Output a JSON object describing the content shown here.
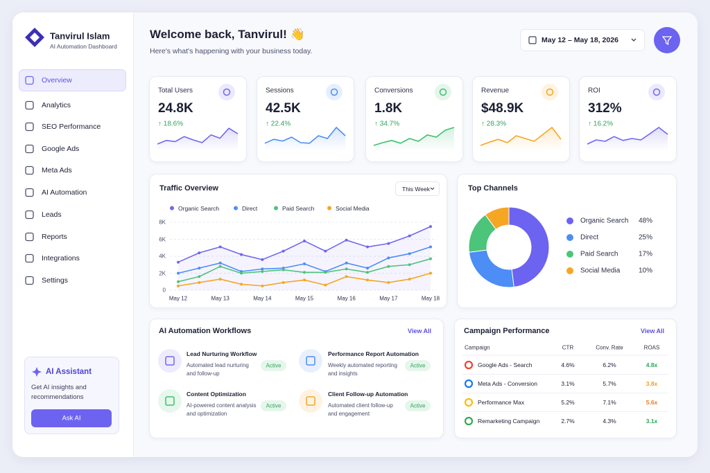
{
  "sidebar": {
    "brand": "Tanvirul Islam",
    "subtitle": "AI Automation Dashboard",
    "nav": [
      "Overview",
      "Analytics",
      "SEO Performance",
      "Google Ads",
      "Meta Ads",
      "AI Automation",
      "Leads",
      "Reports",
      "Integrations",
      "Settings"
    ],
    "assistant": {
      "title": "AI Assistant",
      "text": "Get AI insights and recommendations",
      "button": "Ask AI"
    }
  },
  "header": {
    "title": "Welcome back, Tanvirul! 👋",
    "subtitle": "Here's what's happening with your business today.",
    "date_range": "May 12 – May 18, 2026"
  },
  "kpis": [
    {
      "label": "Total Users",
      "value": "24.8K",
      "change": "↑ 18.6%",
      "color": "#7166ee",
      "trend": [
        25,
        38,
        34,
        52,
        40,
        30,
        58,
        46,
        82,
        62
      ]
    },
    {
      "label": "Sessions",
      "value": "42.5K",
      "change": "↑ 22.4%",
      "color": "#4c8df6",
      "trend": [
        28,
        42,
        36,
        50,
        30,
        28,
        55,
        45,
        85,
        55
      ]
    },
    {
      "label": "Conversions",
      "value": "1.8K",
      "change": "↑ 34.7%",
      "color": "#3fbf6f",
      "trend": [
        20,
        30,
        38,
        28,
        45,
        35,
        58,
        50,
        75,
        85
      ]
    },
    {
      "label": "Revenue",
      "value": "$48.9K",
      "change": "↑ 28.3%",
      "color": "#f5a623",
      "trend": [
        20,
        32,
        42,
        30,
        55,
        45,
        35,
        60,
        85,
        42
      ]
    },
    {
      "label": "ROI",
      "value": "312%",
      "change": "↑ 16.2%",
      "color": "#7166ee",
      "trend": [
        25,
        40,
        35,
        52,
        38,
        45,
        40,
        62,
        85,
        60
      ]
    }
  ],
  "chart_data": [
    {
      "type": "line",
      "title": "Traffic Overview",
      "filter": "This Week",
      "categories": [
        "May 12",
        null,
        "May 13",
        null,
        "May 14",
        null,
        "May 15",
        null,
        "May 16",
        null,
        "May 17",
        null,
        "May 18"
      ],
      "series": [
        {
          "name": "Organic Search",
          "color": "#7166ee",
          "values": [
            3300,
            4400,
            5100,
            4200,
            3600,
            4600,
            5800,
            4600,
            5900,
            5100,
            5500,
            6400,
            7500
          ]
        },
        {
          "name": "Direct",
          "color": "#4c8df6",
          "values": [
            2000,
            2600,
            3200,
            2200,
            2500,
            2600,
            3100,
            2200,
            3200,
            2600,
            3800,
            4300,
            5100
          ]
        },
        {
          "name": "Paid Search",
          "color": "#4cc47a",
          "values": [
            1000,
            1600,
            2800,
            2000,
            2200,
            2400,
            2100,
            2100,
            2500,
            2100,
            2800,
            3000,
            3700
          ]
        },
        {
          "name": "Social Media",
          "color": "#f5a623",
          "values": [
            500,
            900,
            1300,
            700,
            500,
            900,
            1200,
            600,
            1600,
            1200,
            900,
            1300,
            2000
          ]
        }
      ],
      "ylim": [
        0,
        8000
      ],
      "yticks": [
        0,
        {
          "value": 2000,
          "label": "2K"
        },
        {
          "value": 4000,
          "label": "4K"
        },
        {
          "value": 6000,
          "label": "6K"
        },
        {
          "value": 8000,
          "label": "8K"
        }
      ],
      "grid": true
    },
    {
      "type": "donut",
      "title": "Top Channels",
      "categories": [
        "Organic Search",
        "Direct",
        "Paid Search",
        "Social Media"
      ],
      "values": [
        48,
        25,
        17,
        10
      ],
      "value_labels": [
        "48%",
        "25%",
        "17%",
        "10%"
      ],
      "colors": [
        "#6c63f0",
        "#4c8df6",
        "#4cc47a",
        "#f5a623"
      ]
    }
  ],
  "workflows": {
    "title": "AI Automation Workflows",
    "link": "View All",
    "items": [
      {
        "title": "Lead Nurturing Workflow",
        "description": "Automated lead nurturing and follow-up",
        "status": "Active"
      },
      {
        "title": "Performance Report Automation",
        "description": "Weekly automated reporting and insights",
        "status": "Active"
      },
      {
        "title": "Content Optimization",
        "description": "AI-powered content analysis and optimization",
        "status": "Active"
      },
      {
        "title": "Client Follow-up Automation",
        "description": "Automated client follow-up and engagement",
        "status": "Active"
      }
    ]
  },
  "campaigns": {
    "title": "Campaign Performance",
    "link": "View All",
    "columns": [
      "Campaign",
      "CTR",
      "Conv. Rate",
      "ROAS"
    ],
    "rows": [
      {
        "name": "Google Ads - Search",
        "ctr": "4.6%",
        "conv_rate": "6.2%",
        "roas": "4.8x",
        "roas_color": "#2fa55a"
      },
      {
        "name": "Meta Ads - Conversion",
        "ctr": "3.1%",
        "conv_rate": "5.7%",
        "roas": "3.8x",
        "roas_color": "#f0a020"
      },
      {
        "name": "Performance Max",
        "ctr": "5.2%",
        "conv_rate": "7.1%",
        "roas": "5.6x",
        "roas_color": "#f07a20"
      },
      {
        "name": "Remarketing Campaign",
        "ctr": "2.7%",
        "conv_rate": "4.3%",
        "roas": "3.1x",
        "roas_color": "#2fa55a"
      }
    ]
  }
}
